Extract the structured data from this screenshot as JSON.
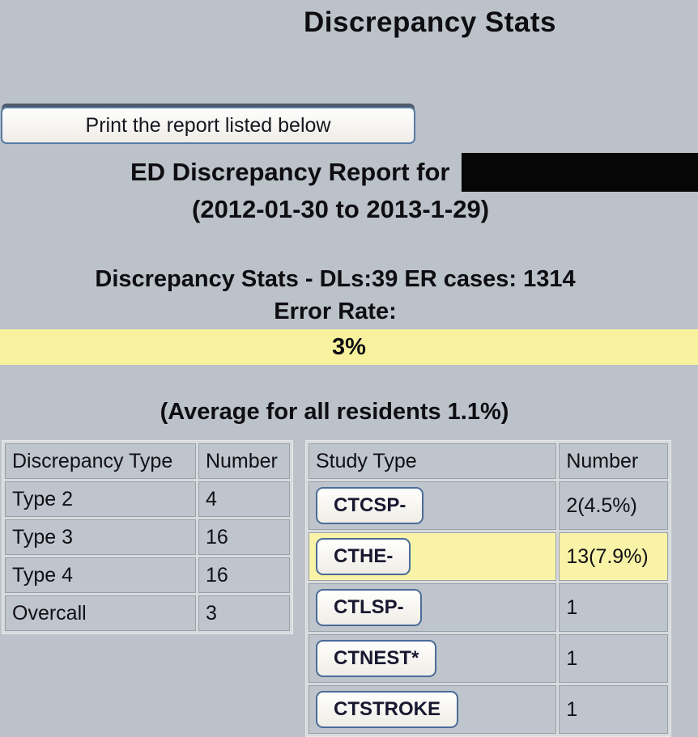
{
  "page": {
    "title": "Discrepancy Stats"
  },
  "print_button": {
    "label": "Print the report listed below"
  },
  "report": {
    "heading_prefix": "ED Discrepancy Report for",
    "name_redacted": true,
    "date_range": "(2012-01-30 to 2013-1-29)",
    "stats_line": "Discrepancy Stats - DLs:39 ER cases: 1314",
    "error_rate_label": "Error Rate:",
    "error_rate_value": "3%",
    "average_line": "(Average for all residents 1.1%)"
  },
  "discrepancy_table": {
    "headers": [
      "Discrepancy Type",
      "Number"
    ],
    "rows": [
      [
        "Type 2",
        "4"
      ],
      [
        "Type 3",
        "16"
      ],
      [
        "Type 4",
        "16"
      ],
      [
        "Overcall",
        "3"
      ]
    ]
  },
  "study_table": {
    "headers": [
      "Study Type",
      "Number"
    ],
    "rows": [
      {
        "button": "CTCSP-",
        "number": "2(4.5%)",
        "highlight": false
      },
      {
        "button": "CTHE-",
        "number": "13(7.9%)",
        "highlight": true
      },
      {
        "button": "CTLSP-",
        "number": "1",
        "highlight": false
      },
      {
        "button": "CTNEST*",
        "number": "1",
        "highlight": false
      },
      {
        "button": "CTSTROKE",
        "number": "1",
        "highlight": false
      }
    ]
  },
  "colors": {
    "background": "#bcc2c9",
    "error_rate_bar_yellow": "#f8f19d",
    "highlight_row_yellow": "#f8f3a7",
    "button_border_blue": "#4a6b97",
    "redaction_black": "#060606"
  }
}
